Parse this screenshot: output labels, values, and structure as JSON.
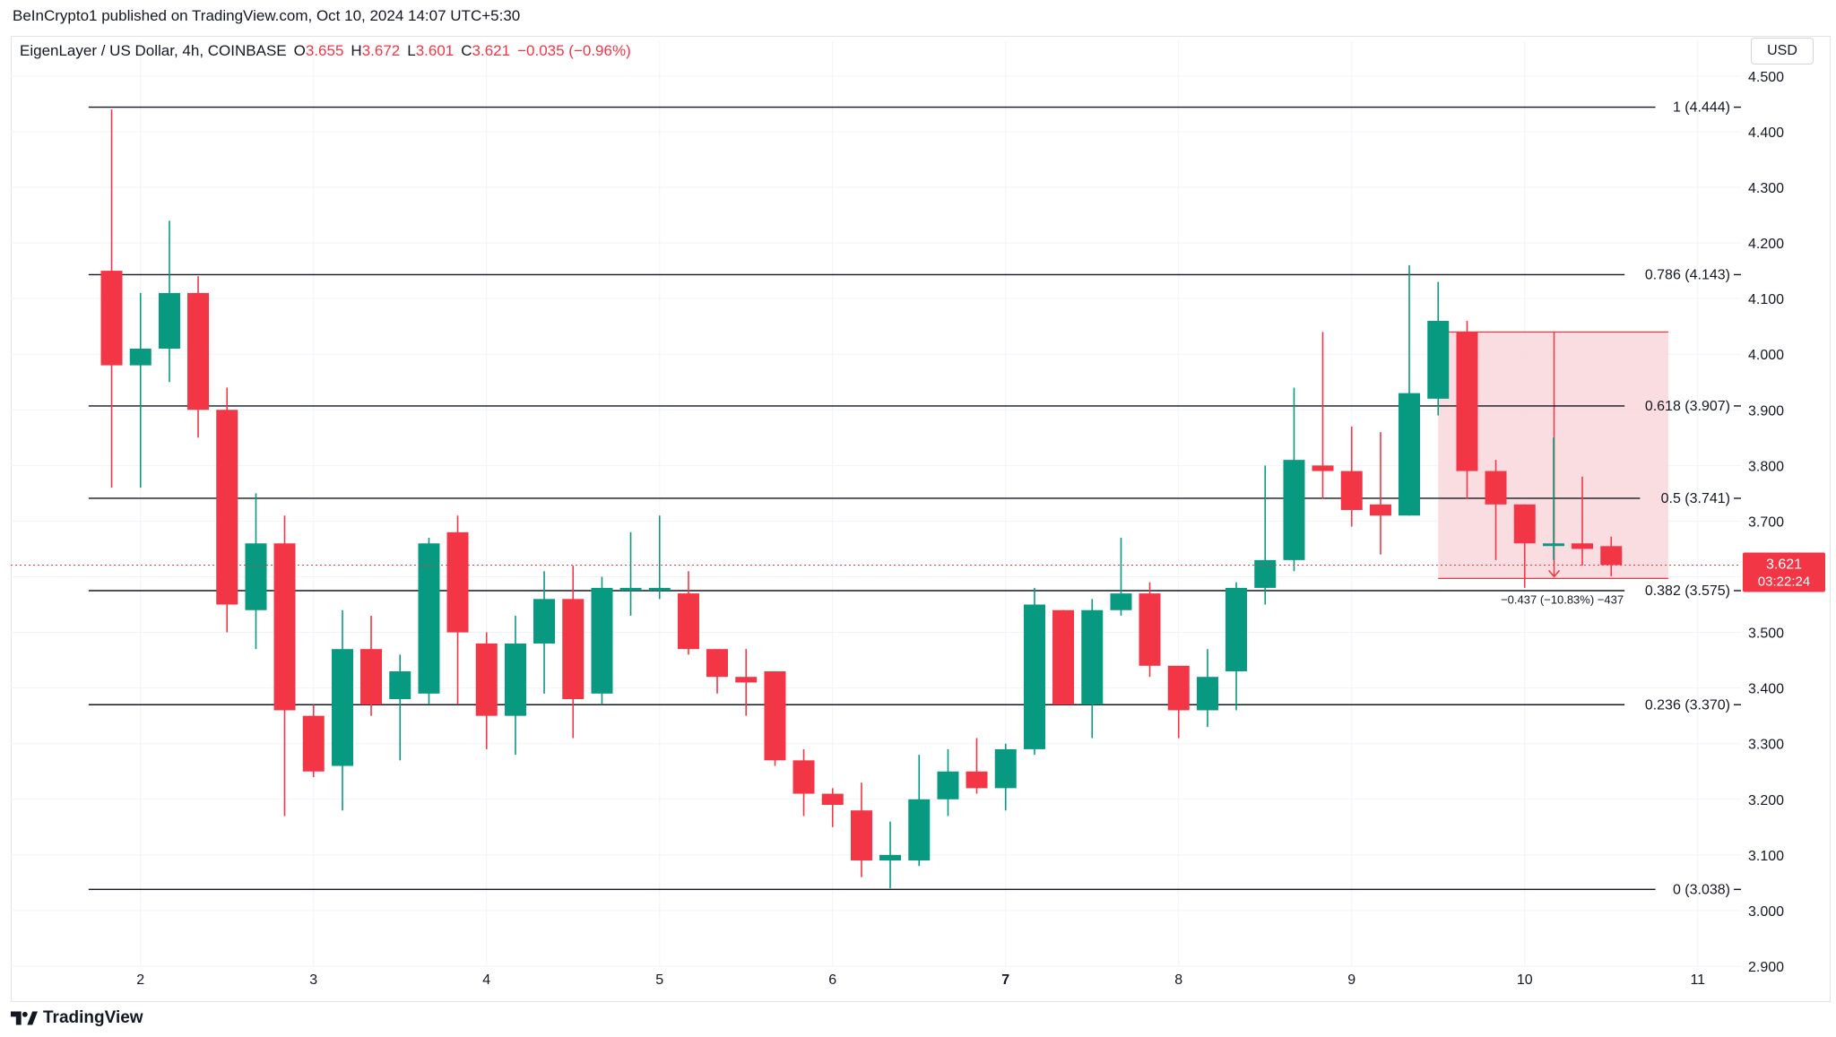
{
  "header": {
    "publisher": "BeInCrypto1 published on TradingView.com, Oct 10, 2024 14:07 UTC+5:30"
  },
  "symbol": {
    "name": "EigenLayer / US Dollar, 4h, COINBASE",
    "o_label": "O",
    "o_value": "3.655",
    "h_label": "H",
    "h_value": "3.672",
    "l_label": "L",
    "l_value": "3.601",
    "c_label": "C",
    "c_value": "3.621",
    "change": "−0.035 (−0.96%)"
  },
  "currency_button": "USD",
  "footer": {
    "brand": "TradingView",
    "logo_icon": "tradingview-logo-icon"
  },
  "colors": {
    "up": "#089981",
    "down": "#f23645",
    "grid": "#f0f3fa",
    "fib_line": "#131722",
    "short_zone": "#f8d7dc",
    "short_border": "#f23645"
  },
  "chart_data": {
    "type": "candlestick",
    "ylim": [
      2.9,
      4.54
    ],
    "xlim": [
      1.25,
      11.25
    ],
    "y_ticks": [
      "4.500",
      "4.400",
      "4.300",
      "4.200",
      "4.100",
      "4.000",
      "3.900",
      "3.800",
      "3.700",
      "3.600",
      "3.500",
      "3.400",
      "3.300",
      "3.200",
      "3.100",
      "3.000",
      "2.900"
    ],
    "x_ticks": [
      {
        "x": 2,
        "label": "2",
        "bold": false
      },
      {
        "x": 3,
        "label": "3",
        "bold": false
      },
      {
        "x": 4,
        "label": "4",
        "bold": false
      },
      {
        "x": 5,
        "label": "5",
        "bold": false
      },
      {
        "x": 6,
        "label": "6",
        "bold": false
      },
      {
        "x": 7,
        "label": "7",
        "bold": true
      },
      {
        "x": 8,
        "label": "8",
        "bold": false
      },
      {
        "x": 9,
        "label": "9",
        "bold": false
      },
      {
        "x": 10,
        "label": "10",
        "bold": false
      },
      {
        "x": 11,
        "label": "11",
        "bold": false
      }
    ],
    "candles": [
      {
        "t": 1.833,
        "o": 4.15,
        "h": 4.44,
        "l": 3.76,
        "c": 3.98
      },
      {
        "t": 2.0,
        "o": 3.98,
        "h": 4.11,
        "l": 3.76,
        "c": 4.01
      },
      {
        "t": 2.167,
        "o": 4.01,
        "h": 4.24,
        "l": 3.95,
        "c": 4.11
      },
      {
        "t": 2.333,
        "o": 4.11,
        "h": 4.14,
        "l": 3.85,
        "c": 3.9
      },
      {
        "t": 2.5,
        "o": 3.9,
        "h": 3.94,
        "l": 3.5,
        "c": 3.55
      },
      {
        "t": 2.667,
        "o": 3.54,
        "h": 3.75,
        "l": 3.47,
        "c": 3.66
      },
      {
        "t": 2.833,
        "o": 3.66,
        "h": 3.71,
        "l": 3.17,
        "c": 3.36
      },
      {
        "t": 3.0,
        "o": 3.35,
        "h": 3.37,
        "l": 3.24,
        "c": 3.25
      },
      {
        "t": 3.167,
        "o": 3.26,
        "h": 3.54,
        "l": 3.18,
        "c": 3.47
      },
      {
        "t": 3.333,
        "o": 3.47,
        "h": 3.53,
        "l": 3.35,
        "c": 3.37
      },
      {
        "t": 3.5,
        "o": 3.38,
        "h": 3.46,
        "l": 3.27,
        "c": 3.43
      },
      {
        "t": 3.667,
        "o": 3.39,
        "h": 3.67,
        "l": 3.37,
        "c": 3.66
      },
      {
        "t": 3.833,
        "o": 3.68,
        "h": 3.71,
        "l": 3.37,
        "c": 3.5
      },
      {
        "t": 4.0,
        "o": 3.48,
        "h": 3.5,
        "l": 3.29,
        "c": 3.35
      },
      {
        "t": 4.167,
        "o": 3.35,
        "h": 3.53,
        "l": 3.28,
        "c": 3.48
      },
      {
        "t": 4.333,
        "o": 3.48,
        "h": 3.61,
        "l": 3.39,
        "c": 3.56
      },
      {
        "t": 4.5,
        "o": 3.56,
        "h": 3.62,
        "l": 3.31,
        "c": 3.38
      },
      {
        "t": 4.667,
        "o": 3.39,
        "h": 3.6,
        "l": 3.37,
        "c": 3.58
      },
      {
        "t": 4.833,
        "o": 3.58,
        "h": 3.68,
        "l": 3.53,
        "c": 3.58
      },
      {
        "t": 5.0,
        "o": 3.58,
        "h": 3.71,
        "l": 3.56,
        "c": 3.58
      },
      {
        "t": 5.167,
        "o": 3.57,
        "h": 3.61,
        "l": 3.46,
        "c": 3.47
      },
      {
        "t": 5.333,
        "o": 3.47,
        "h": 3.47,
        "l": 3.39,
        "c": 3.42
      },
      {
        "t": 5.5,
        "o": 3.42,
        "h": 3.47,
        "l": 3.35,
        "c": 3.41
      },
      {
        "t": 5.667,
        "o": 3.43,
        "h": 3.43,
        "l": 3.26,
        "c": 3.27
      },
      {
        "t": 5.833,
        "o": 3.27,
        "h": 3.29,
        "l": 3.17,
        "c": 3.21
      },
      {
        "t": 6.0,
        "o": 3.21,
        "h": 3.22,
        "l": 3.15,
        "c": 3.19
      },
      {
        "t": 6.167,
        "o": 3.18,
        "h": 3.23,
        "l": 3.06,
        "c": 3.09
      },
      {
        "t": 6.333,
        "o": 3.09,
        "h": 3.16,
        "l": 3.04,
        "c": 3.1
      },
      {
        "t": 6.5,
        "o": 3.09,
        "h": 3.28,
        "l": 3.08,
        "c": 3.2
      },
      {
        "t": 6.667,
        "o": 3.2,
        "h": 3.29,
        "l": 3.17,
        "c": 3.25
      },
      {
        "t": 6.833,
        "o": 3.25,
        "h": 3.31,
        "l": 3.21,
        "c": 3.22
      },
      {
        "t": 7.0,
        "o": 3.22,
        "h": 3.3,
        "l": 3.18,
        "c": 3.29
      },
      {
        "t": 7.167,
        "o": 3.29,
        "h": 3.58,
        "l": 3.28,
        "c": 3.55
      },
      {
        "t": 7.333,
        "o": 3.54,
        "h": 3.54,
        "l": 3.37,
        "c": 3.37
      },
      {
        "t": 7.5,
        "o": 3.37,
        "h": 3.56,
        "l": 3.31,
        "c": 3.54
      },
      {
        "t": 7.667,
        "o": 3.54,
        "h": 3.67,
        "l": 3.53,
        "c": 3.57
      },
      {
        "t": 7.833,
        "o": 3.57,
        "h": 3.59,
        "l": 3.42,
        "c": 3.44
      },
      {
        "t": 8.0,
        "o": 3.44,
        "h": 3.43,
        "l": 3.31,
        "c": 3.36
      },
      {
        "t": 8.167,
        "o": 3.36,
        "h": 3.47,
        "l": 3.33,
        "c": 3.42
      },
      {
        "t": 8.333,
        "o": 3.43,
        "h": 3.59,
        "l": 3.36,
        "c": 3.58
      },
      {
        "t": 8.5,
        "o": 3.58,
        "h": 3.8,
        "l": 3.55,
        "c": 3.63
      },
      {
        "t": 8.667,
        "o": 3.63,
        "h": 3.94,
        "l": 3.61,
        "c": 3.81
      },
      {
        "t": 8.833,
        "o": 3.8,
        "h": 4.04,
        "l": 3.74,
        "c": 3.79
      },
      {
        "t": 9.0,
        "o": 3.79,
        "h": 3.87,
        "l": 3.69,
        "c": 3.72
      },
      {
        "t": 9.167,
        "o": 3.73,
        "h": 3.86,
        "l": 3.64,
        "c": 3.71
      },
      {
        "t": 9.333,
        "o": 3.71,
        "h": 4.16,
        "l": 3.71,
        "c": 3.93
      },
      {
        "t": 9.5,
        "o": 3.92,
        "h": 4.13,
        "l": 3.89,
        "c": 4.06
      },
      {
        "t": 9.667,
        "o": 4.04,
        "h": 4.06,
        "l": 3.74,
        "c": 3.79
      },
      {
        "t": 9.833,
        "o": 3.79,
        "h": 3.81,
        "l": 3.63,
        "c": 3.73
      },
      {
        "t": 10.0,
        "o": 3.73,
        "h": 3.73,
        "l": 3.58,
        "c": 3.66
      },
      {
        "t": 10.167,
        "o": 3.66,
        "h": 3.85,
        "l": 3.63,
        "c": 3.66
      },
      {
        "t": 10.333,
        "o": 3.66,
        "h": 3.78,
        "l": 3.62,
        "c": 3.65
      },
      {
        "t": 10.5,
        "o": 3.655,
        "h": 3.672,
        "l": 3.601,
        "c": 3.621
      }
    ],
    "fib_levels": [
      {
        "ratio": "1",
        "price": 4.444,
        "label": "1 (4.444)"
      },
      {
        "ratio": "0.786",
        "price": 4.143,
        "label": "0.786 (4.143)"
      },
      {
        "ratio": "0.618",
        "price": 3.907,
        "label": "0.618 (3.907)"
      },
      {
        "ratio": "0.5",
        "price": 3.741,
        "label": "0.5 (3.741)"
      },
      {
        "ratio": "0.382",
        "price": 3.575,
        "label": "0.382 (3.575)"
      },
      {
        "ratio": "0.236",
        "price": 3.37,
        "label": "0.236 (3.370)"
      },
      {
        "ratio": "0",
        "price": 3.038,
        "label": "0 (3.038)"
      }
    ],
    "fib_x_start": 1.7,
    "short_position": {
      "x_start": 9.5,
      "x_end": 10.83,
      "top": 4.04,
      "bottom": 3.597,
      "measure_label": "−0.437 (−10.83%) −437"
    },
    "current_price": {
      "value": 3.621,
      "label": "3.621",
      "countdown": "03:22:24"
    }
  }
}
